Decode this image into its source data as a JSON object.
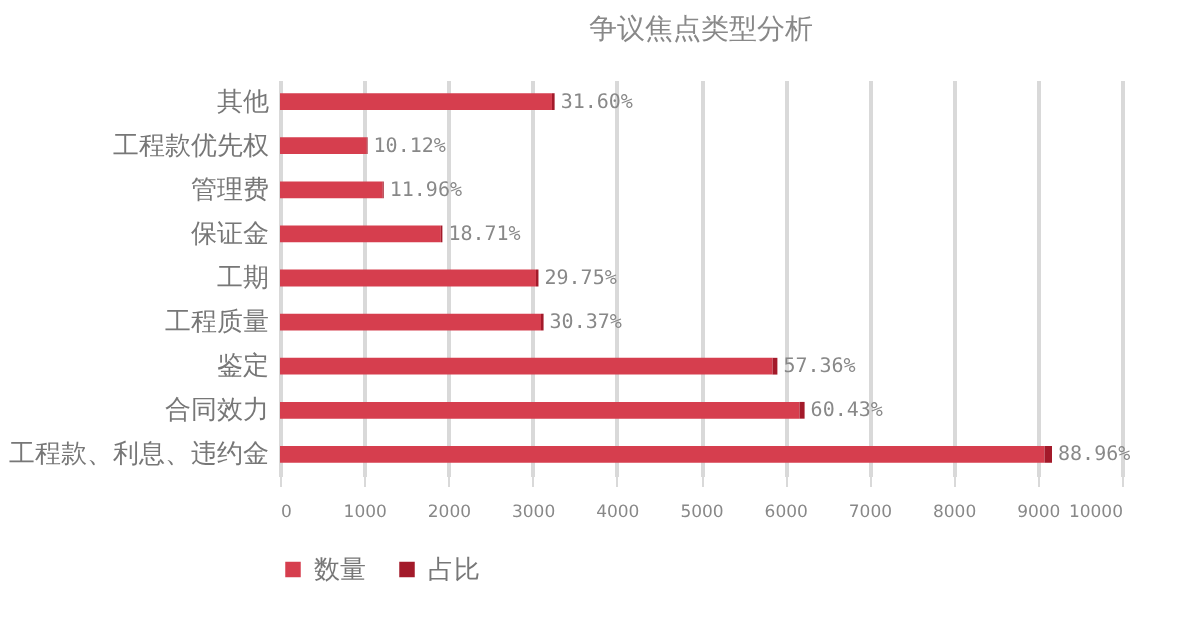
{
  "chart_data": {
    "type": "bar",
    "orientation": "horizontal",
    "stacked": true,
    "title": "争议焦点类型分析",
    "categories": [
      "其他",
      "工程款优先权",
      "管理费",
      "保证金",
      "工期",
      "工程质量",
      "鉴定",
      "合同效力",
      "工程款、利息、违约金"
    ],
    "series": [
      {
        "name": "数量",
        "color": "#d63e4e",
        "values": [
          3230,
          1030,
          1220,
          1910,
          3040,
          3100,
          5850,
          6170,
          9080
        ]
      },
      {
        "name": "占比",
        "color": "#a31a2a",
        "values": [
          31.6,
          10.12,
          11.96,
          18.71,
          29.75,
          30.37,
          57.36,
          60.43,
          88.96
        ],
        "value_labels": [
          "31.60%",
          "10.12%",
          "11.96%",
          "18.71%",
          "29.75%",
          "30.37%",
          "57.36%",
          "60.43%",
          "88.96%"
        ]
      }
    ],
    "xlim": [
      0,
      10000
    ],
    "xticks": [
      0,
      1000,
      2000,
      3000,
      4000,
      5000,
      6000,
      7000,
      8000,
      9000,
      10000
    ],
    "grid": "x",
    "legend": "bottom"
  }
}
